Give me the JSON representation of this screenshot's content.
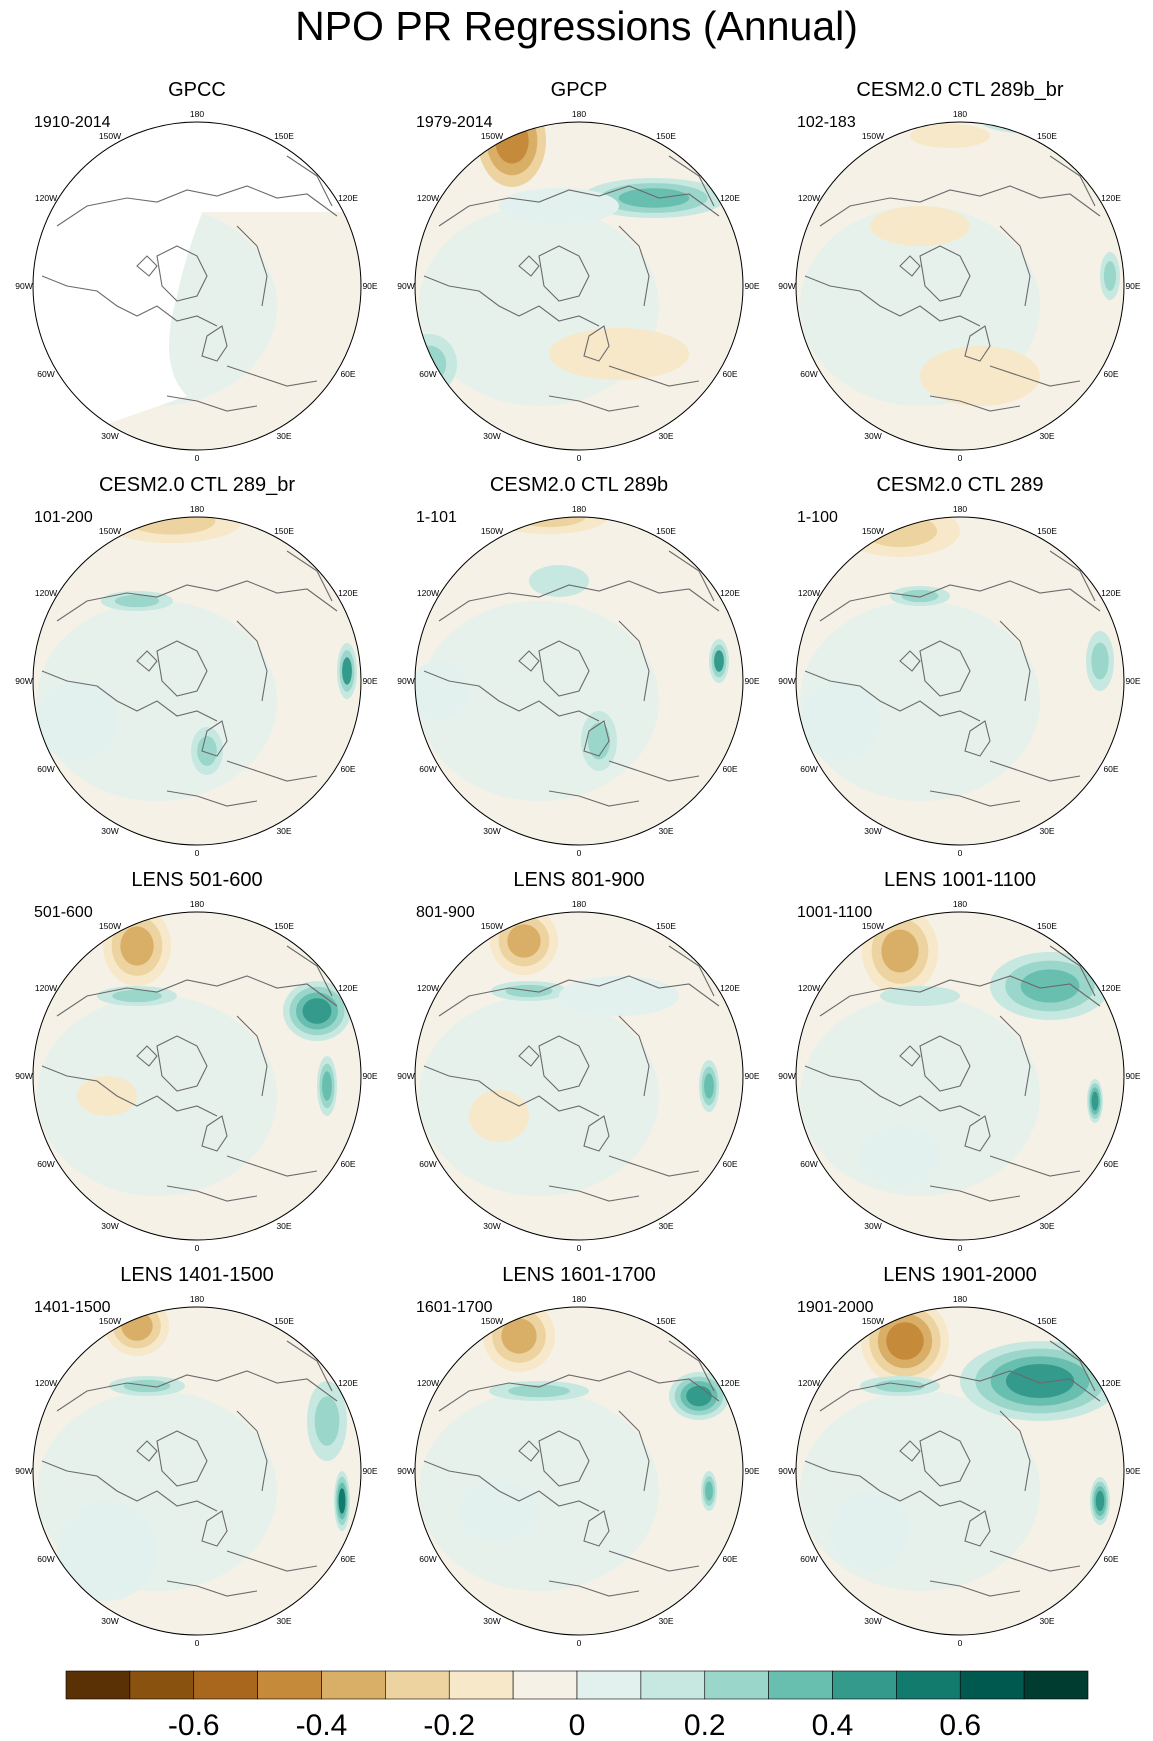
{
  "figure": {
    "title": "NPO PR Regressions (Annual)",
    "longitude_labels": [
      "180",
      "150E",
      "120E",
      "90E",
      "60E",
      "30E",
      "0",
      "30W",
      "60W",
      "90W",
      "120W",
      "150W"
    ]
  },
  "panels": [
    {
      "title": "GPCC",
      "period": "1910-2014",
      "ocean_masked": true
    },
    {
      "title": "GPCP",
      "period": "1979-2014",
      "ocean_masked": false
    },
    {
      "title": "CESM2.0 CTL 289b_br",
      "period": "102-183",
      "ocean_masked": false
    },
    {
      "title": "CESM2.0 CTL 289_br",
      "period": "101-200",
      "ocean_masked": false
    },
    {
      "title": "CESM2.0 CTL 289b",
      "period": "1-101",
      "ocean_masked": false
    },
    {
      "title": "CESM2.0 CTL 289",
      "period": "1-100",
      "ocean_masked": false
    },
    {
      "title": "LENS 501-600",
      "period": "501-600",
      "ocean_masked": false
    },
    {
      "title": "LENS 801-900",
      "period": "801-900",
      "ocean_masked": false
    },
    {
      "title": "LENS 1001-1100",
      "period": "1001-1100",
      "ocean_masked": false
    },
    {
      "title": "LENS 1401-1500",
      "period": "1401-1500",
      "ocean_masked": false
    },
    {
      "title": "LENS 1601-1700",
      "period": "1601-1700",
      "ocean_masked": false
    },
    {
      "title": "LENS 1901-2000",
      "period": "1901-2000",
      "ocean_masked": false
    }
  ],
  "colorbar": {
    "colors": [
      "#5a3005",
      "#8a520f",
      "#a8671c",
      "#c58a3a",
      "#d9ae67",
      "#ecd3a0",
      "#f6e8c8",
      "#f5f1e6",
      "#e2f1ee",
      "#c6e8e0",
      "#9ad6ca",
      "#68bfb0",
      "#349a8c",
      "#137a6e",
      "#00594f",
      "#003c30"
    ],
    "tick_labels": [
      "-0.6",
      "-0.4",
      "-0.2",
      "0",
      "0.2",
      "0.4",
      "0.6"
    ],
    "tick_values": [
      -0.6,
      -0.4,
      -0.2,
      0,
      0.2,
      0.4,
      0.6
    ],
    "range": [
      -0.8,
      0.8
    ]
  }
}
